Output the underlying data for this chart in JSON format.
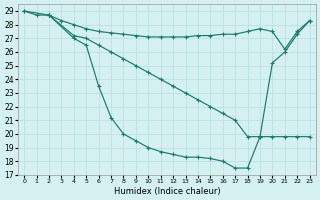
{
  "xlabel": "Humidex (Indice chaleur)",
  "background_color": "#d4f0f0",
  "grid_color": "#b8dede",
  "line_color": "#1a7a6e",
  "xlim": [
    -0.5,
    23.5
  ],
  "ylim": [
    17,
    29.5
  ],
  "yticks": [
    17,
    18,
    19,
    20,
    21,
    22,
    23,
    24,
    25,
    26,
    27,
    28,
    29
  ],
  "xticks": [
    0,
    1,
    2,
    3,
    4,
    5,
    6,
    7,
    8,
    9,
    10,
    11,
    12,
    13,
    14,
    15,
    16,
    17,
    18,
    19,
    20,
    21,
    22,
    23
  ],
  "curve1_x": [
    0,
    1,
    2,
    3,
    4,
    5,
    6,
    7,
    8,
    9,
    10,
    11,
    12,
    13,
    14,
    15,
    16,
    17,
    18,
    19,
    20,
    21,
    22,
    23
  ],
  "curve1_y": [
    29.0,
    28.7,
    28.7,
    28.3,
    28.0,
    27.7,
    27.5,
    27.4,
    27.3,
    27.2,
    27.1,
    27.1,
    27.1,
    27.1,
    27.2,
    27.2,
    27.3,
    27.3,
    27.5,
    27.7,
    27.5,
    26.2,
    27.5,
    28.3
  ],
  "curve2_x": [
    0,
    2,
    4,
    5,
    6,
    7,
    8,
    9,
    10,
    11,
    12,
    13,
    14,
    15,
    16,
    17,
    18,
    19,
    20,
    21,
    22,
    23
  ],
  "curve2_y": [
    29.0,
    28.7,
    27.2,
    27.0,
    26.5,
    26.0,
    25.5,
    25.0,
    24.5,
    24.0,
    23.5,
    23.0,
    22.5,
    22.0,
    21.5,
    21.0,
    19.8,
    19.8,
    25.2,
    26.0,
    27.3,
    28.3
  ],
  "curve3_x": [
    2,
    4,
    5,
    6,
    7,
    8,
    9,
    10,
    11,
    12,
    13,
    14,
    15,
    16,
    17,
    18,
    19,
    20,
    21,
    22,
    23
  ],
  "curve3_y": [
    28.7,
    27.0,
    26.5,
    23.5,
    21.2,
    20.0,
    19.5,
    19.0,
    18.7,
    18.5,
    18.3,
    18.3,
    18.2,
    18.0,
    17.5,
    17.5,
    19.8,
    19.8,
    19.8,
    19.8,
    19.8
  ]
}
